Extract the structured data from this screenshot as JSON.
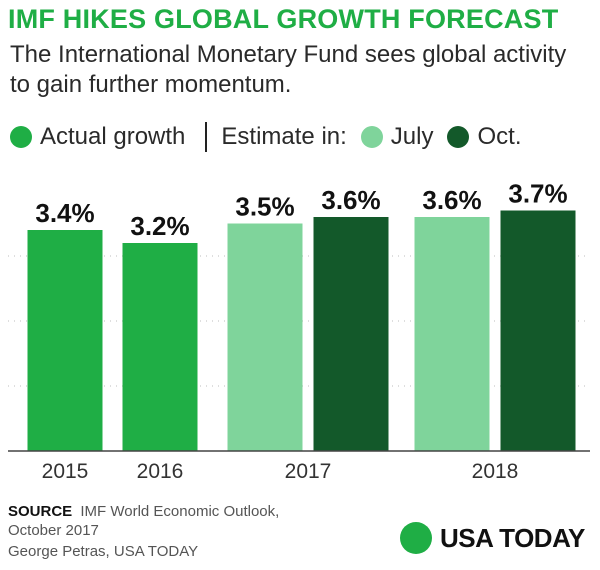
{
  "header": {
    "title": "IMF HIKES GLOBAL GROWTH FORECAST",
    "subtitle": "The International Monetary Fund sees global activity to gain further momentum."
  },
  "legend": {
    "actual_label": "Actual growth",
    "estimate_prefix": "Estimate in:",
    "july_label": "July",
    "oct_label": "Oct."
  },
  "colors": {
    "title": "#1fae45",
    "actual": "#1fae45",
    "july": "#7fd49b",
    "oct": "#13592a",
    "gridline": "#bcbcbc",
    "brand_circle": "#1fae45"
  },
  "footer": {
    "source_label": "SOURCE",
    "source_text": "IMF World Economic Outlook, October 2017",
    "credit": "George Petras, USA TODAY",
    "brand": "USA TODAY"
  },
  "chart_data": {
    "type": "bar",
    "value_suffix": "%",
    "ylim": [
      0,
      4
    ],
    "grid": true,
    "legend_placement": "top",
    "groups": [
      {
        "label": "2015",
        "bars": [
          {
            "kind": "actual",
            "value": 3.4,
            "label": "3.4%"
          }
        ]
      },
      {
        "label": "2016",
        "bars": [
          {
            "kind": "actual",
            "value": 3.2,
            "label": "3.2%"
          }
        ]
      },
      {
        "label": "2017",
        "bars": [
          {
            "kind": "july",
            "value": 3.5,
            "label": "3.5%"
          },
          {
            "kind": "oct",
            "value": 3.6,
            "label": "3.6%"
          }
        ]
      },
      {
        "label": "2018",
        "bars": [
          {
            "kind": "july",
            "value": 3.6,
            "label": "3.6%"
          },
          {
            "kind": "oct",
            "value": 3.7,
            "label": "3.7%"
          }
        ]
      }
    ]
  }
}
